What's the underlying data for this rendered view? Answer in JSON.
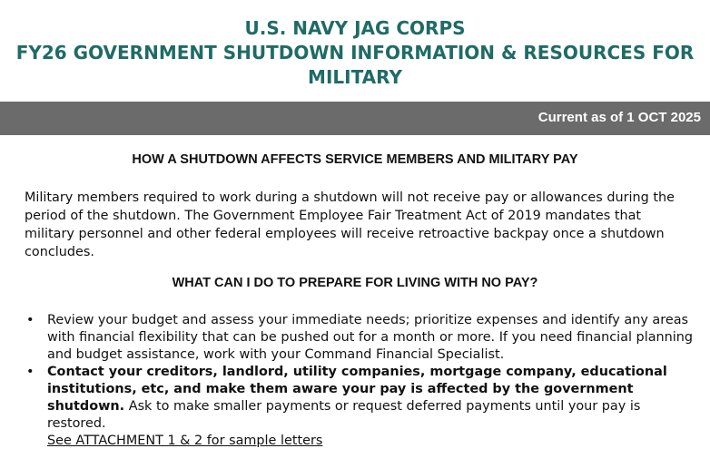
{
  "header": {
    "line1": "U.S. NAVY JAG CORPS",
    "line2": "FY26 GOVERNMENT SHUTDOWN INFORMATION & RESOURCES FOR",
    "line3": "MILITARY",
    "title_color": "#1f6b66"
  },
  "current_bar": {
    "text": "Current as of 1 OCT 2025",
    "background": "#6b6b6b"
  },
  "section1": {
    "heading": "HOW A SHUTDOWN AFFECTS SERVICE MEMBERS AND MILITARY PAY",
    "paragraph": "Military members required to work during a shutdown will not receive pay or allowances during the period of the shutdown.  The Government Employee Fair Treatment Act of 2019 mandates that military personnel and other federal employees will receive retroactive backpay once a shutdown concludes."
  },
  "section2": {
    "heading": "WHAT CAN I DO TO PREPARE FOR LIVING WITH NO PAY?",
    "bullet_symbol": "•",
    "bullet1": "Review your budget and assess your immediate needs; prioritize expenses and identify any areas with financial flexibility that can be pushed out for a month or more.  If you need financial planning and budget assistance, work with your Command Financial Specialist.",
    "bullet2_bold": "Contact your creditors, landlord, utility companies, mortgage company, educational institutions, etc, and make them aware your pay is affected by the government shutdown.",
    "bullet2_text": "Ask to make smaller payments or request deferred payments until your pay is restored.",
    "bullet2_link": "See ATTACHMENT 1 & 2 for sample letters"
  }
}
